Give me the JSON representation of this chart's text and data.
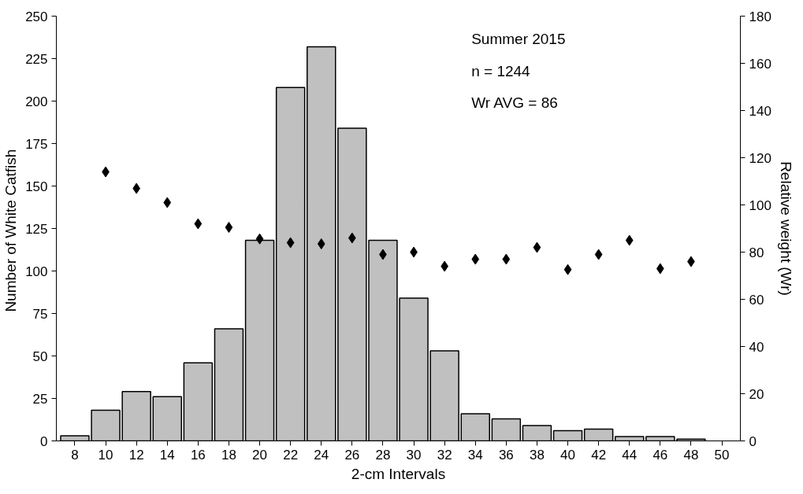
{
  "chart_data": {
    "type": "bar",
    "xlabel": "2-cm Intervals",
    "ylabel": "Number of  White Catfish",
    "y2label": "Relative weight (Wr)",
    "categories": [
      "8",
      "10",
      "12",
      "14",
      "16",
      "18",
      "20",
      "22",
      "24",
      "26",
      "28",
      "30",
      "32",
      "34",
      "36",
      "38",
      "40",
      "42",
      "44",
      "46",
      "48",
      "50"
    ],
    "series": [
      {
        "color": "#c0c0c0",
        "values": [
          3,
          18,
          29,
          26,
          46,
          66,
          118,
          208,
          232,
          184,
          118,
          84,
          53,
          16,
          13,
          9,
          6,
          7,
          2.5,
          2.5,
          1,
          null
        ]
      },
      {
        "type": "scatter",
        "axis": "y2",
        "color": "#000000",
        "marker": "diamond",
        "x": [
          "10",
          "12",
          "14",
          "16",
          "18",
          "20",
          "22",
          "24",
          "26",
          "28",
          "30",
          "32",
          "34",
          "36",
          "38",
          "40",
          "42",
          "44",
          "46",
          "48"
        ],
        "values": [
          114,
          107,
          101,
          92,
          90.5,
          85.6,
          84,
          83.5,
          86,
          79,
          80,
          74,
          77,
          77,
          82,
          72.6,
          79,
          85,
          73,
          76
        ]
      }
    ],
    "ylim": [
      0,
      250
    ],
    "yticks": [
      0,
      25,
      50,
      75,
      100,
      125,
      150,
      175,
      200,
      225,
      250
    ],
    "y2lim": [
      0,
      180
    ],
    "y2ticks": [
      0,
      20,
      40,
      60,
      80,
      100,
      120,
      140,
      160,
      180
    ],
    "annotations": [
      "Summer 2015",
      "n = 1244",
      "Wr AVG = 86"
    ],
    "grid": false
  }
}
